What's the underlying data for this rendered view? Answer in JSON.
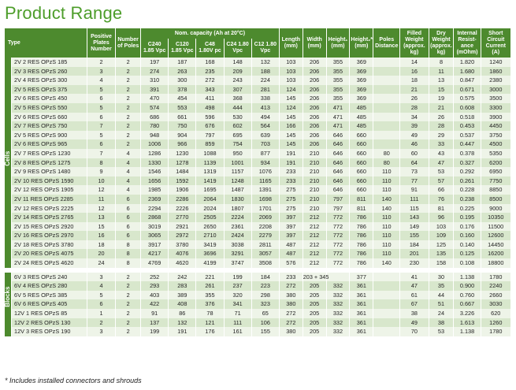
{
  "title": "Product Range",
  "headers": {
    "type": "Type",
    "positive_plates": "Positive Plates Number",
    "num_poles": "Number of Poles",
    "nom_capacity": "Nom. capacity (Ah at 20°C)",
    "c240": "C240 1.85 Vpc",
    "c120": "C120 1.85 Vpc",
    "c48": "C48 1.80V pc",
    "c24": "C24 1.80 Vpc",
    "c12": "C12 1.80 Vpc",
    "length": "Length (mm)",
    "width": "Width (mm)",
    "height1": "Height₁ (mm)",
    "height2": "Height₂* (mm)",
    "poles_distance": "Poles Distance",
    "filled_weight": "Filled Weight (approx. kg)",
    "dry_weight": "Dry Weight (approx. kg)",
    "internal_resistance": "Internal Resist- ance (mOhm)",
    "short_circuit": "Short Circuit Current (A)"
  },
  "groups": {
    "cells": "Cells",
    "blocks": "Blocks"
  },
  "cells": [
    [
      "2V  2 RES OPzS 185",
      "2",
      "2",
      "197",
      "187",
      "168",
      "148",
      "132",
      "103",
      "206",
      "355",
      "369",
      "",
      "14",
      "8",
      "1.820",
      "1240"
    ],
    [
      "2V  3 RES OPzS 260",
      "3",
      "2",
      "274",
      "263",
      "235",
      "209",
      "188",
      "103",
      "206",
      "355",
      "369",
      "",
      "16",
      "11",
      "1.680",
      "1860"
    ],
    [
      "2V  4 RES OPzS 300",
      "4",
      "2",
      "310",
      "300",
      "272",
      "243",
      "224",
      "103",
      "206",
      "355",
      "369",
      "",
      "18",
      "13",
      "0.847",
      "2380"
    ],
    [
      "2V  5 RES OPzS 375",
      "5",
      "2",
      "391",
      "378",
      "343",
      "307",
      "281",
      "124",
      "206",
      "355",
      "369",
      "",
      "21",
      "15",
      "0.671",
      "3000"
    ],
    [
      "2V  6 RES OPzS 450",
      "6",
      "2",
      "470",
      "454",
      "411",
      "368",
      "338",
      "145",
      "206",
      "355",
      "369",
      "",
      "26",
      "19",
      "0.575",
      "3500"
    ],
    [
      "2V  5 RES OPzS 550",
      "5",
      "2",
      "574",
      "553",
      "498",
      "444",
      "413",
      "124",
      "206",
      "471",
      "485",
      "",
      "28",
      "21",
      "0.608",
      "3300"
    ],
    [
      "2V  6 RES OPzS 660",
      "6",
      "2",
      "686",
      "661",
      "596",
      "530",
      "494",
      "145",
      "206",
      "471",
      "485",
      "",
      "34",
      "26",
      "0.518",
      "3900"
    ],
    [
      "2V  7 RES OPzS 750",
      "7",
      "2",
      "780",
      "750",
      "676",
      "602",
      "564",
      "166",
      "206",
      "471",
      "485",
      "",
      "39",
      "28",
      "0.453",
      "4450"
    ],
    [
      "2V  5 RES OPzS 900",
      "5",
      "2",
      "948",
      "904",
      "797",
      "695",
      "639",
      "145",
      "206",
      "646",
      "660",
      "",
      "49",
      "29",
      "0.537",
      "3750"
    ],
    [
      "2V  6 RES OPzS 965",
      "6",
      "2",
      "1006",
      "966",
      "859",
      "754",
      "703",
      "145",
      "206",
      "646",
      "660",
      "",
      "46",
      "33",
      "0.447",
      "4500"
    ],
    [
      "2V  7 RES OPzS 1230",
      "7",
      "4",
      "1286",
      "1230",
      "1088",
      "950",
      "877",
      "191",
      "210",
      "646",
      "660",
      "80",
      "60",
      "43",
      "0.378",
      "5350"
    ],
    [
      "2V  8 RES OPzS 1275",
      "8",
      "4",
      "1330",
      "1278",
      "1139",
      "1001",
      "934",
      "191",
      "210",
      "646",
      "660",
      "80",
      "64",
      "47",
      "0.327",
      "6200"
    ],
    [
      "2V  9 RES OPzS 1480",
      "9",
      "4",
      "1546",
      "1484",
      "1319",
      "1157",
      "1076",
      "233",
      "210",
      "646",
      "660",
      "110",
      "73",
      "53",
      "0.292",
      "6950"
    ],
    [
      "2V 10 RES OPzS 1590",
      "10",
      "4",
      "1656",
      "1592",
      "1419",
      "1248",
      "1165",
      "233",
      "210",
      "646",
      "660",
      "110",
      "77",
      "57",
      "0.261",
      "7750"
    ],
    [
      "2V 12 RES OPzS 1905",
      "12",
      "4",
      "1985",
      "1906",
      "1695",
      "1487",
      "1391",
      "275",
      "210",
      "646",
      "660",
      "110",
      "91",
      "66",
      "0.228",
      "8850"
    ],
    [
      "2V 11 RES OPzS 2285",
      "11",
      "6",
      "2369",
      "2286",
      "2064",
      "1830",
      "1698",
      "275",
      "210",
      "797",
      "811",
      "140",
      "111",
      "76",
      "0.238",
      "8500"
    ],
    [
      "2V 12 RES OPzS 2225",
      "12",
      "6",
      "2294",
      "2226",
      "2024",
      "1807",
      "1701",
      "275",
      "210",
      "797",
      "811",
      "140",
      "115",
      "81",
      "0.225",
      "9000"
    ],
    [
      "2V 14 RES OPzS 2765",
      "13",
      "6",
      "2868",
      "2770",
      "2505",
      "2224",
      "2069",
      "397",
      "212",
      "772",
      "786",
      "110",
      "143",
      "96",
      "0.195",
      "10350"
    ],
    [
      "2V 15 RES OPzS 2920",
      "15",
      "6",
      "3019",
      "2921",
      "2650",
      "2361",
      "2208",
      "397",
      "212",
      "772",
      "786",
      "110",
      "149",
      "103",
      "0.176",
      "11500"
    ],
    [
      "2V 16 RES OPzS 2970",
      "16",
      "6",
      "3065",
      "2972",
      "2710",
      "2424",
      "2279",
      "397",
      "212",
      "772",
      "786",
      "110",
      "155",
      "109",
      "0.160",
      "12600"
    ],
    [
      "2V 18 RES OPzS 3780",
      "18",
      "8",
      "3917",
      "3780",
      "3419",
      "3038",
      "2811",
      "487",
      "212",
      "772",
      "786",
      "110",
      "184",
      "125",
      "0.140",
      "14450"
    ],
    [
      "2V 20 RES OPzS 4075",
      "20",
      "8",
      "4217",
      "4076",
      "3696",
      "3291",
      "3057",
      "487",
      "212",
      "772",
      "786",
      "110",
      "201",
      "135",
      "0.125",
      "16200"
    ],
    [
      "2V 24 RES OPzS 4620",
      "24",
      "8",
      "4769",
      "4620",
      "4199",
      "3747",
      "3508",
      "576",
      "212",
      "772",
      "786",
      "140",
      "230",
      "158",
      "0.108",
      "18800"
    ]
  ],
  "blocks": [
    [
      "6V  3 RES OPzS 240",
      "3",
      "2",
      "252",
      "242",
      "221",
      "199",
      "184",
      "233",
      "203 + 345",
      "",
      "377",
      "",
      "41",
      "30",
      "1.138",
      "1780"
    ],
    [
      "6V  4 RES OPzS 280",
      "4",
      "2",
      "293",
      "283",
      "261",
      "237",
      "223",
      "272",
      "205",
      "332",
      "361",
      "",
      "47",
      "35",
      "0.900",
      "2240"
    ],
    [
      "6V  5 RES OPzS 385",
      "5",
      "2",
      "403",
      "389",
      "355",
      "320",
      "298",
      "380",
      "205",
      "332",
      "361",
      "",
      "61",
      "44",
      "0.760",
      "2660"
    ],
    [
      "6V  6 RES OPzS 405",
      "6",
      "2",
      "422",
      "408",
      "376",
      "341",
      "323",
      "380",
      "205",
      "332",
      "361",
      "",
      "67",
      "51",
      "0.667",
      "3030"
    ],
    [
      "12V  1 RES OPzS 85",
      "1",
      "2",
      "91",
      "86",
      "78",
      "71",
      "65",
      "272",
      "205",
      "332",
      "361",
      "",
      "38",
      "24",
      "3.226",
      "620"
    ],
    [
      "12V  2 RES OPzS 130",
      "2",
      "2",
      "137",
      "132",
      "121",
      "111",
      "106",
      "272",
      "205",
      "332",
      "361",
      "",
      "49",
      "38",
      "1.613",
      "1260"
    ],
    [
      "12V  3 RES OPzS 190",
      "3",
      "2",
      "199",
      "191",
      "176",
      "161",
      "155",
      "380",
      "205",
      "332",
      "361",
      "",
      "70",
      "53",
      "1.138",
      "1780"
    ]
  ],
  "footnote": "* Includes installed connectors and shrouds"
}
